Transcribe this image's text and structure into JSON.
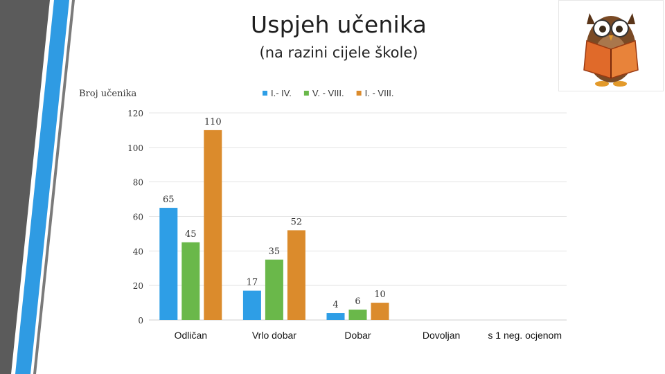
{
  "slide": {
    "title": "Uspjeh učenika",
    "subtitle": "(na razini cijele škole)",
    "owl_icon": "owl-reading-book-icon"
  },
  "colors": {
    "series1": "#2e9ee6",
    "series2": "#6ab84a",
    "series3": "#db8b2c",
    "accent_stripe_blue": "#2f9be3",
    "accent_stripe_grey": "#5a5a5a"
  },
  "chart_data": {
    "type": "bar",
    "title": "",
    "ylabel": "Broj učenika",
    "xlabel": "",
    "categories": [
      "Odličan",
      "Vrlo dobar",
      "Dobar",
      "Dovoljan",
      "s 1 neg. ocjenom"
    ],
    "series": [
      {
        "name": "I.- IV.",
        "values": [
          65,
          17,
          4,
          null,
          null
        ]
      },
      {
        "name": "V. - VIII.",
        "values": [
          45,
          35,
          6,
          null,
          null
        ]
      },
      {
        "name": "I. - VIII.",
        "values": [
          110,
          52,
          10,
          null,
          null
        ]
      }
    ],
    "ylim": [
      0,
      120
    ],
    "yticks": [
      0,
      20,
      40,
      60,
      80,
      100,
      120
    ],
    "grid": true,
    "legend": "top"
  }
}
